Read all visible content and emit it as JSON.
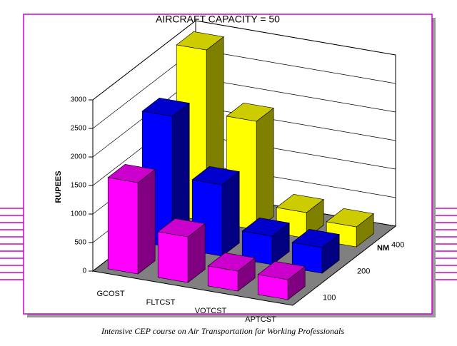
{
  "chart_data": {
    "type": "bar3d",
    "title": "AIRCRAFT CAPACITY = 50",
    "y_label": "RUPEES",
    "z_label": "NM",
    "categories": [
      "GCOST",
      "FLTCST",
      "VOTCST",
      "APTCST"
    ],
    "series": [
      {
        "name": "100",
        "color": "#ff00ff",
        "values": [
          1600,
          800,
          350,
          350
        ]
      },
      {
        "name": "200",
        "color": "#0000ff",
        "values": [
          2300,
          1250,
          500,
          450
        ]
      },
      {
        "name": "400",
        "color": "#ffff00",
        "values": [
          3000,
          1900,
          450,
          350
        ]
      }
    ],
    "ylim": [
      0,
      3000
    ],
    "yticks": [
      0,
      500,
      1000,
      1500,
      2000,
      2500,
      3000
    ],
    "grid": true
  },
  "footer": "Intensive CEP course on Air Transportation for Working Professionals"
}
